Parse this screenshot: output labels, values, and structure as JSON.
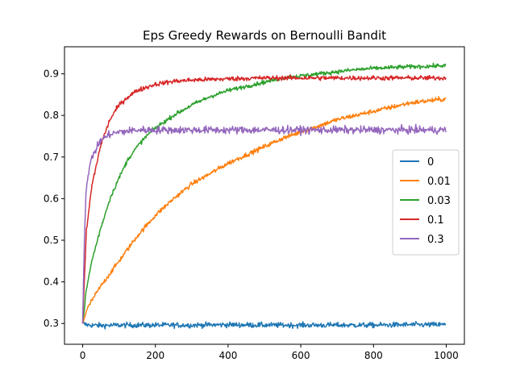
{
  "chart_data": {
    "type": "line",
    "title": "Eps Greedy Rewards on Bernoulli Bandit",
    "xlabel": "",
    "ylabel": "",
    "xlim": [
      -50,
      1050
    ],
    "ylim": [
      0.25,
      0.965
    ],
    "xticks": [
      "0",
      "200",
      "400",
      "600",
      "800",
      "1000"
    ],
    "yticks": [
      "0.3",
      "0.4",
      "0.5",
      "0.6",
      "0.7",
      "0.8",
      "0.9"
    ],
    "grid": false,
    "legend_position": "center-right",
    "series": [
      {
        "name": "0",
        "color": "#1f77b4",
        "x": [
          0,
          10,
          20,
          50,
          100,
          200,
          300,
          400,
          500,
          600,
          700,
          800,
          900,
          1000
        ],
        "y": [
          0.3,
          0.297,
          0.296,
          0.295,
          0.296,
          0.296,
          0.296,
          0.297,
          0.296,
          0.296,
          0.296,
          0.296,
          0.297,
          0.297
        ]
      },
      {
        "name": "0.01",
        "color": "#ff7f0e",
        "x": [
          0,
          10,
          25,
          50,
          75,
          100,
          150,
          200,
          250,
          300,
          350,
          400,
          450,
          500,
          550,
          600,
          650,
          700,
          750,
          800,
          850,
          900,
          950,
          1000
        ],
        "y": [
          0.3,
          0.33,
          0.355,
          0.39,
          0.42,
          0.45,
          0.51,
          0.56,
          0.6,
          0.635,
          0.66,
          0.685,
          0.705,
          0.725,
          0.745,
          0.76,
          0.775,
          0.79,
          0.8,
          0.81,
          0.82,
          0.83,
          0.835,
          0.84
        ]
      },
      {
        "name": "0.03",
        "color": "#2ca02c",
        "x": [
          0,
          10,
          25,
          50,
          75,
          100,
          125,
          150,
          175,
          200,
          250,
          300,
          350,
          400,
          450,
          500,
          550,
          600,
          650,
          700,
          750,
          800,
          850,
          900,
          950,
          1000
        ],
        "y": [
          0.3,
          0.38,
          0.45,
          0.53,
          0.6,
          0.65,
          0.695,
          0.725,
          0.75,
          0.77,
          0.8,
          0.825,
          0.845,
          0.86,
          0.87,
          0.88,
          0.89,
          0.895,
          0.9,
          0.905,
          0.91,
          0.913,
          0.915,
          0.917,
          0.918,
          0.92
        ]
      },
      {
        "name": "0.1",
        "color": "#d62728",
        "x": [
          0,
          10,
          25,
          50,
          75,
          100,
          125,
          150,
          200,
          250,
          300,
          400,
          500,
          600,
          700,
          800,
          900,
          1000
        ],
        "y": [
          0.3,
          0.52,
          0.63,
          0.73,
          0.79,
          0.825,
          0.845,
          0.86,
          0.875,
          0.882,
          0.885,
          0.888,
          0.89,
          0.89,
          0.89,
          0.89,
          0.89,
          0.89
        ]
      },
      {
        "name": "0.3",
        "color": "#9467bd",
        "x": [
          0,
          5,
          10,
          25,
          50,
          75,
          100,
          150,
          200,
          300,
          400,
          500,
          600,
          700,
          800,
          900,
          1000
        ],
        "y": [
          0.3,
          0.52,
          0.63,
          0.7,
          0.74,
          0.755,
          0.76,
          0.765,
          0.765,
          0.765,
          0.765,
          0.765,
          0.765,
          0.765,
          0.765,
          0.765,
          0.765
        ]
      }
    ]
  }
}
